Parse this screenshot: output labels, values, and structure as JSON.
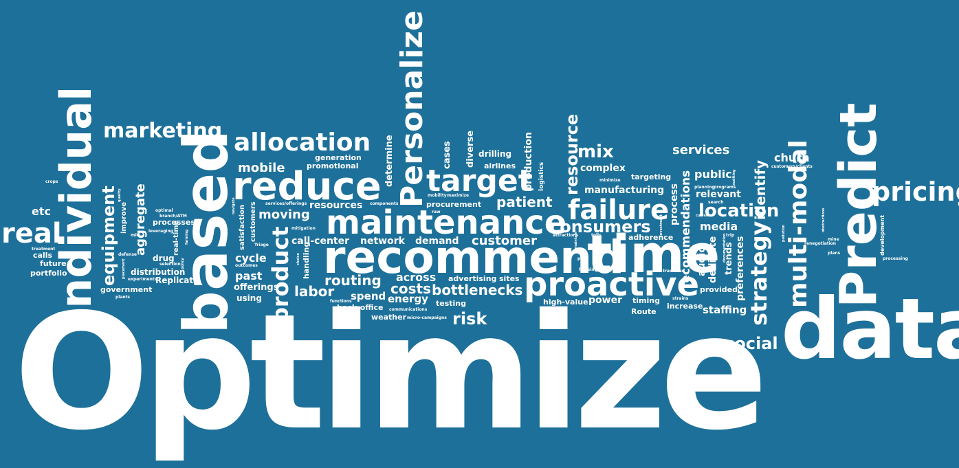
{
  "background_color": "#1d7099",
  "text_color": "#ffffff",
  "words": {
    "optimize": "Optimize",
    "data": "data",
    "predict": "Predict",
    "based": "based",
    "individual": "individual",
    "recommend": "recommend",
    "time": "time",
    "maintenance": "maintenance",
    "proactive": "proactive",
    "reduce": "reduce",
    "personalize": "Personalize",
    "real": "real",
    "target": "target",
    "failure": "failure",
    "pricing": "pricing",
    "multi_modal": "multi-modal",
    "allocation": "allocation",
    "marketing": "marketing",
    "product": "product",
    "equipment": "equipment",
    "strategy": "strategy",
    "location": "location",
    "consumers": "consumers",
    "mix": "mix",
    "resource": "resource",
    "social": "social",
    "customer": "customer",
    "patient": "patient",
    "costs": "costs",
    "routing": "routing",
    "labor": "labor",
    "bottlenecks": "bottlenecks",
    "risk": "risk",
    "services": "services",
    "churn": "churn",
    "identify": "identify",
    "recommendations": "recommendations",
    "mobile": "mobile",
    "moving": "moving",
    "aggregate": "aggregate",
    "etc": "etc",
    "media": "media",
    "public": "public",
    "relevant": "relevant",
    "staffing": "staffing",
    "past": "past",
    "cycle": "cycle",
    "across": "across",
    "spend": "spend",
    "energy": "energy",
    "resources": "resources",
    "manufacturing": "manufacturing",
    "complex": "complex",
    "process": "process",
    "dedicate": "dedicate",
    "audio": "audio",
    "preferences": "preferences",
    "trends": "trends",
    "power": "power",
    "production": "production",
    "determine": "determine",
    "cases": "cases",
    "diverse": "diverse",
    "drilling": "drilling",
    "airlines": "airlines",
    "targeting": "targeting",
    "call_center": "call-center",
    "network": "network",
    "demand": "demand",
    "handling": "handling",
    "offerings": "offerings",
    "using": "using",
    "satisfaction": "satisfaction",
    "customers": "customers",
    "promotional": "promotional",
    "generation": "generation",
    "procurement": "procurement",
    "advertising": "advertising",
    "sites": "sites",
    "testing": "testing",
    "back_office": "back-office",
    "weather": "weather",
    "high_value": "high-value",
    "timing": "timing",
    "route": "Route",
    "increase": "increase",
    "provided": "provided",
    "adherence": "adherence",
    "logistics": "logistics",
    "development": "development",
    "distribution": "distribution",
    "replicate": "Replicate",
    "drug": "drug",
    "processes": "processes",
    "real_time": "real-time",
    "improve": "improve",
    "calls": "calls",
    "future": "future",
    "portfolio": "portfolio",
    "government": "government",
    "triage": "Triage",
    "outcomes": "outcomes",
    "navigate": "navigate",
    "optimal": "optimal",
    "branch_atm": "branch/ATM",
    "leveraging": "leveraging",
    "quality": "quality",
    "crops": "crops",
    "treatment": "treatment",
    "defense": "defense",
    "placement": "placement",
    "experiments": "experiments",
    "selection": "selection",
    "policy": "policy",
    "farming": "farming",
    "plants": "plants",
    "mile": "mile",
    "services_offerings": "services/offerings",
    "components": "components",
    "mitigation": "mitigation",
    "mobility": "mobility",
    "maximize": "maximize",
    "raw": "raw",
    "functions": "functions",
    "communications": "communications",
    "micro_campaigns": "micro-campaigns",
    "choice": "choice",
    "minimize": "minimize",
    "tolls": "tolls",
    "attractions": "attractions",
    "maintain": "maintain",
    "path": "path",
    "housing": "housing",
    "investment": "investment",
    "trackload": "trackload",
    "strains": "strains",
    "planning": "planning",
    "programs": "programs",
    "auditing": "auditing",
    "search": "search",
    "current": "current",
    "trip": "trip",
    "documentation": "documentation",
    "pollution": "pollution",
    "customers_clients": "customers/clients",
    "mine": "mine",
    "renegotiation": "renegotiation",
    "obstructions": "obstructions",
    "plans": "plans",
    "processing": "processing"
  }
}
